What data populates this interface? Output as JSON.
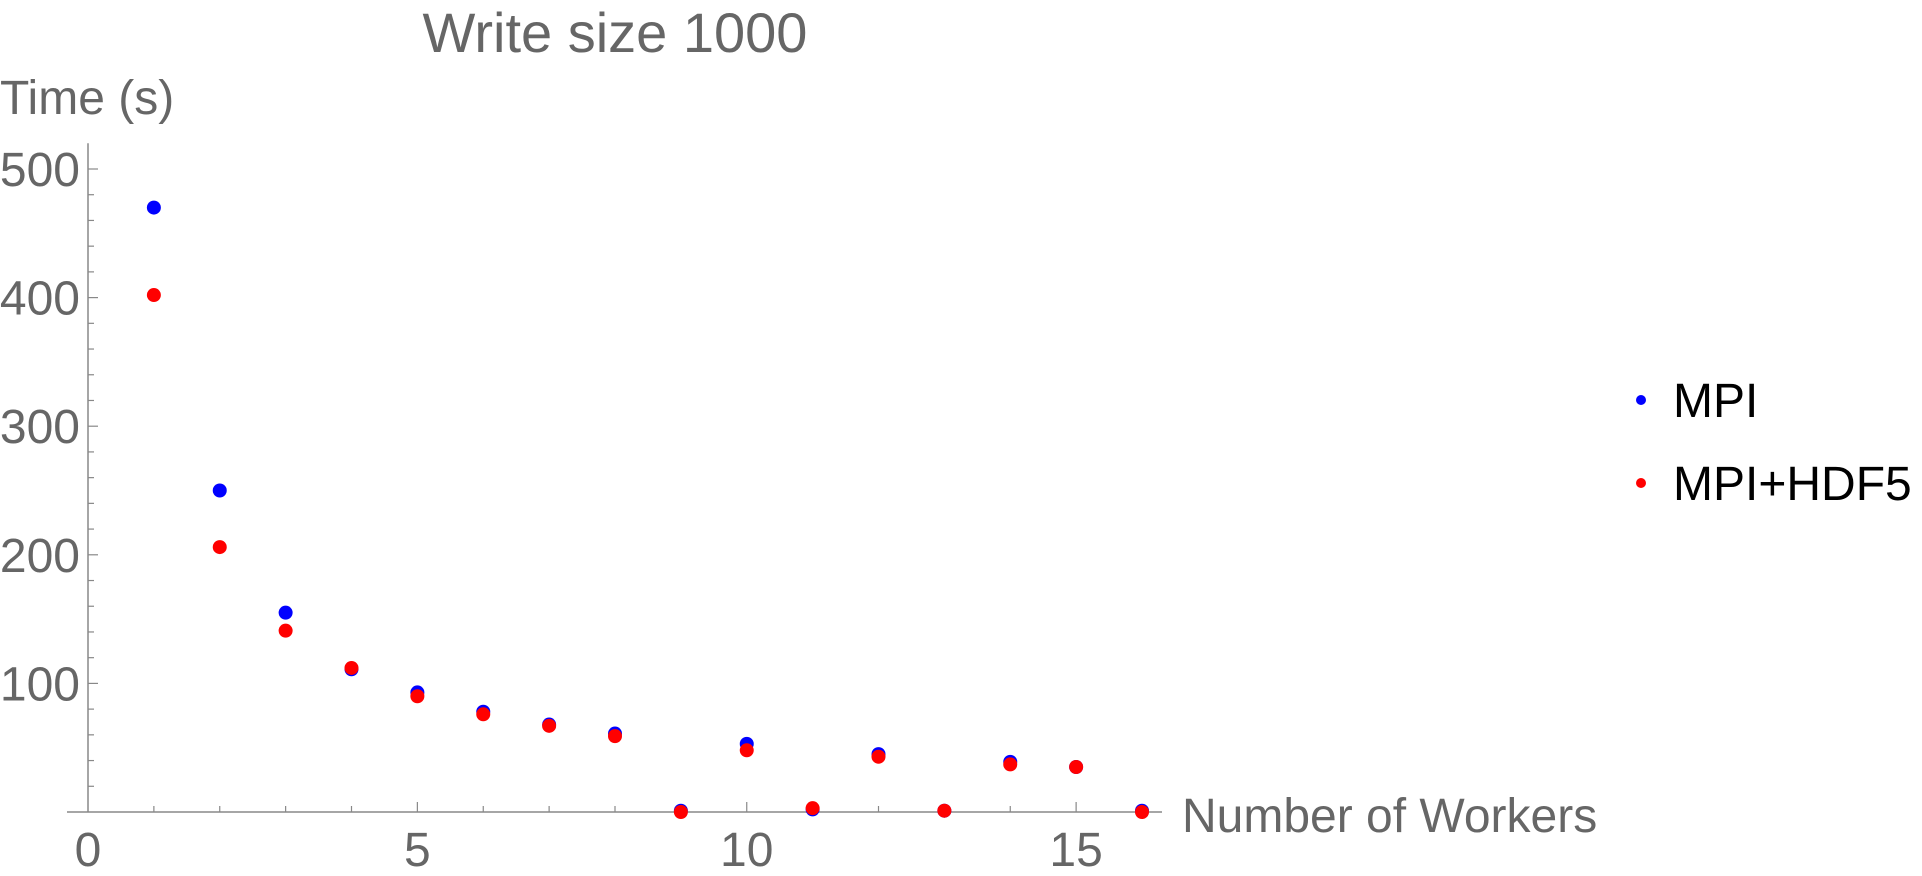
{
  "chart_data": {
    "type": "scatter",
    "title": "Write size 1000",
    "xlabel": "Number of Workers",
    "ylabel": "Time (s)",
    "xlim": [
      0,
      16.3
    ],
    "ylim": [
      0,
      520
    ],
    "x_ticks": [
      0,
      5,
      10,
      15
    ],
    "y_ticks": [
      100,
      200,
      300,
      400,
      500
    ],
    "grid": false,
    "legend_position": "right",
    "series": [
      {
        "name": "MPI",
        "color": "#0000ff",
        "points": [
          [
            1,
            470
          ],
          [
            2,
            250
          ],
          [
            3,
            155
          ],
          [
            4,
            111
          ],
          [
            5,
            93
          ],
          [
            6,
            78
          ],
          [
            7,
            68
          ],
          [
            8,
            61
          ],
          [
            9,
            1
          ],
          [
            10,
            53
          ],
          [
            11,
            2
          ],
          [
            12,
            45
          ],
          [
            13,
            1
          ],
          [
            14,
            39
          ],
          [
            15,
            35
          ],
          [
            16,
            1
          ]
        ]
      },
      {
        "name": "MPI+HDF5",
        "color": "#ff0000",
        "points": [
          [
            1,
            402
          ],
          [
            2,
            206
          ],
          [
            3,
            141
          ],
          [
            4,
            112
          ],
          [
            5,
            90
          ],
          [
            6,
            76
          ],
          [
            7,
            67
          ],
          [
            8,
            59
          ],
          [
            9,
            0
          ],
          [
            10,
            48
          ],
          [
            11,
            3
          ],
          [
            12,
            43
          ],
          [
            13,
            1
          ],
          [
            14,
            37
          ],
          [
            15,
            35
          ],
          [
            16,
            0
          ]
        ]
      }
    ]
  }
}
